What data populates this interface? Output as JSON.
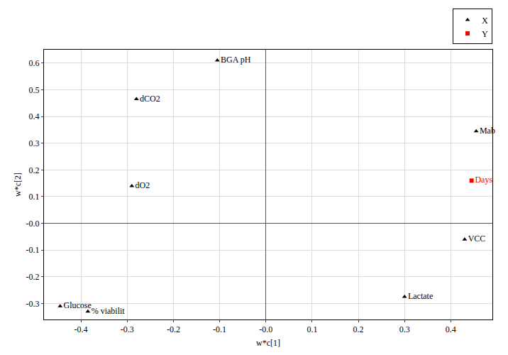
{
  "chart_data": {
    "type": "scatter",
    "x_label": "w*c[1]",
    "y_label": "w*c[2]",
    "xlim": [
      -0.48,
      0.49
    ],
    "ylim": [
      -0.36,
      0.65
    ],
    "xticks": [
      -0.4,
      -0.3,
      -0.2,
      -0.1,
      {
        "value": 0,
        "label": "-0.0"
      },
      0.1,
      0.2,
      0.3,
      0.4
    ],
    "yticks": [
      -0.3,
      -0.2,
      -0.1,
      {
        "value": 0,
        "label": "-0.0"
      },
      0.1,
      0.2,
      0.3,
      0.4,
      0.5,
      0.6
    ],
    "grid": true,
    "legend": "top right",
    "series": [
      {
        "name": "X",
        "color": "#000000",
        "marker": "triangle-up",
        "labels": [
          "BGA pH",
          "dCO2",
          "dO2",
          "Glucose",
          "% viabilit",
          "Mab",
          "VCC",
          "Lactate"
        ],
        "x": [
          -0.105,
          -0.28,
          -0.29,
          -0.445,
          -0.385,
          0.455,
          0.43,
          0.3
        ],
        "values": [
          0.61,
          0.465,
          0.14,
          -0.31,
          -0.33,
          0.345,
          -0.06,
          -0.275
        ]
      },
      {
        "name": "Y",
        "color": "#ff0000",
        "marker": "square",
        "labels": [
          "Days"
        ],
        "x": [
          0.445
        ],
        "values": [
          0.16
        ]
      }
    ]
  }
}
